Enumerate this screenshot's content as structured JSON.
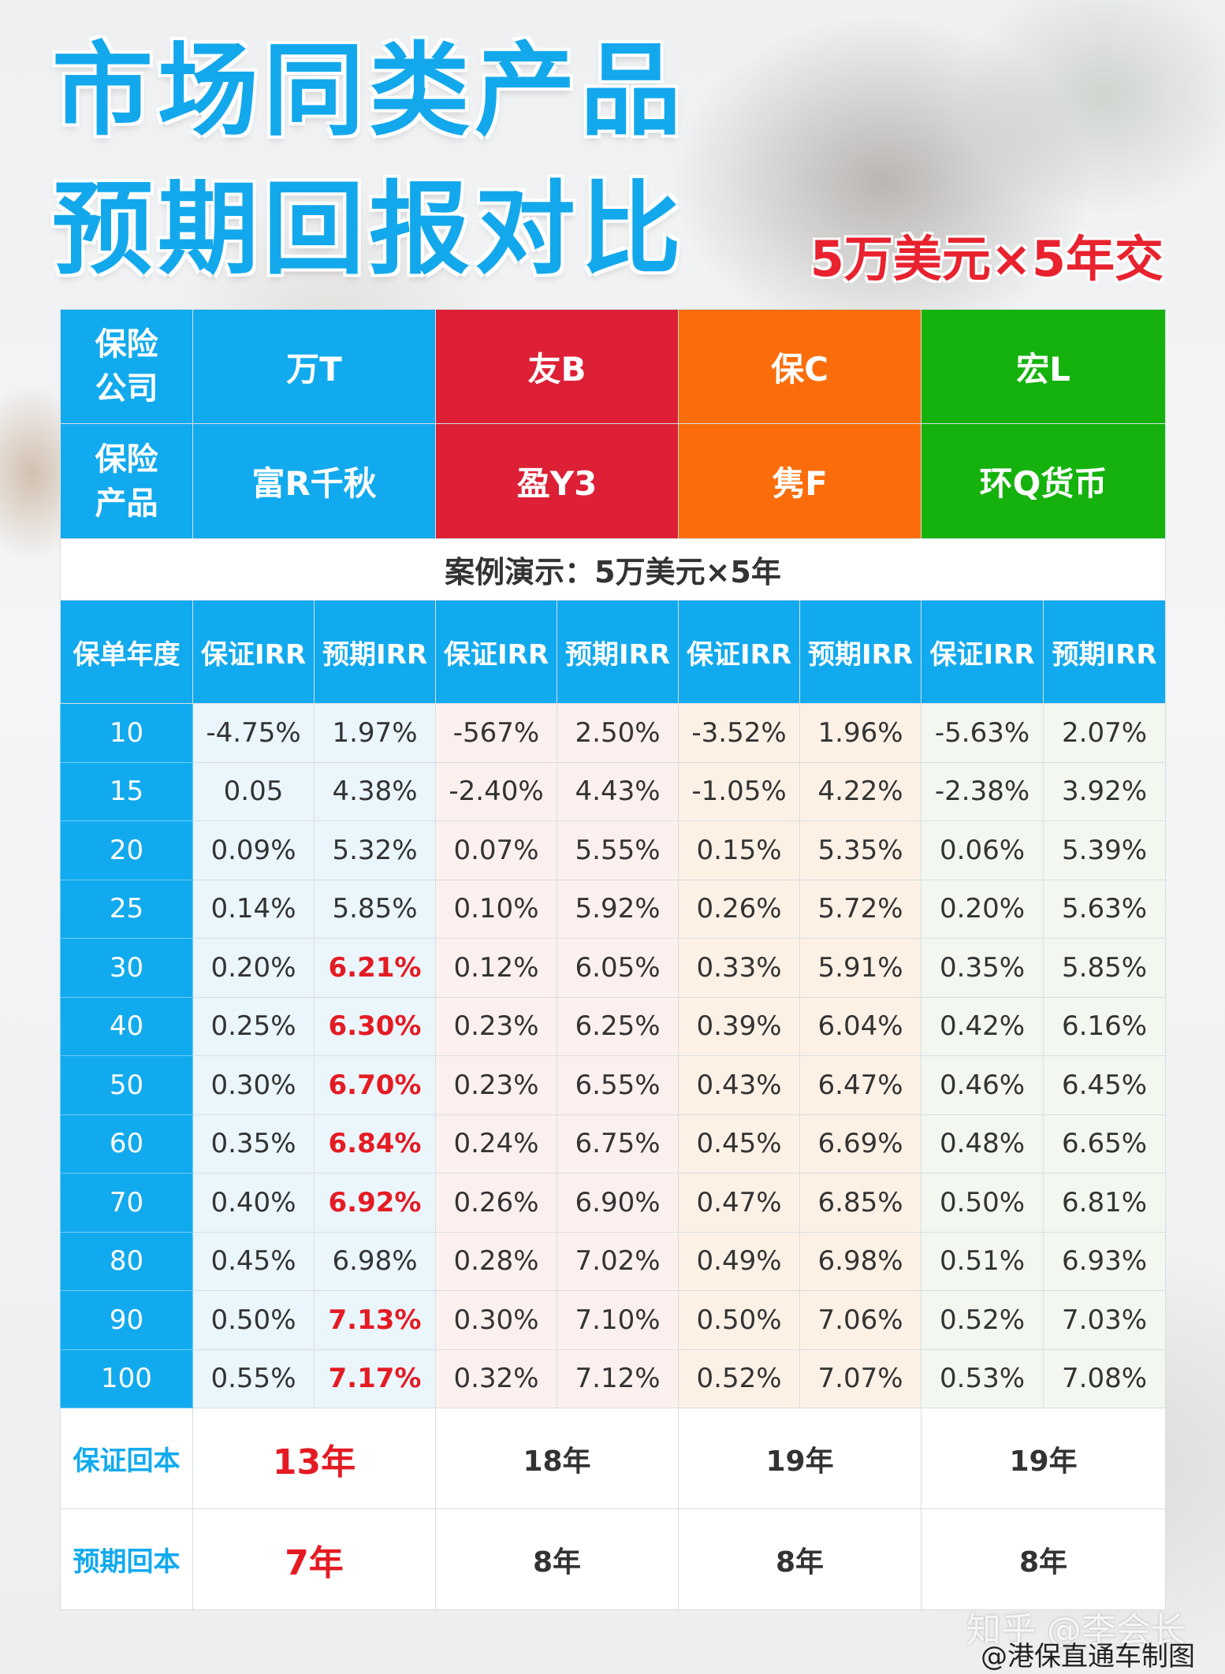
{
  "title": {
    "line1": "市场同类产品",
    "line2": "预期回报对比"
  },
  "subtitle": "5万美元×5年交",
  "header": {
    "company_label_l1": "保险",
    "company_label_l2": "公司",
    "product_label_l1": "保险",
    "product_label_l2": "产品",
    "companies": [
      "万T",
      "友B",
      "保C",
      "宏L"
    ],
    "products": [
      "富R千秋",
      "盈Y3",
      "隽F",
      "环Q货币"
    ]
  },
  "case_text": "案例演示：5万美元×5年",
  "columns": {
    "year": "保单年度",
    "guaranteed": "保证IRR",
    "expected": "预期IRR"
  },
  "rows": [
    {
      "year": "10",
      "cells": [
        "-4.75%",
        "1.97%",
        "-567%",
        "2.50%",
        "-3.52%",
        "1.96%",
        "-5.63%",
        "2.07%"
      ]
    },
    {
      "year": "15",
      "cells": [
        "0.05",
        "4.38%",
        "-2.40%",
        "4.43%",
        "-1.05%",
        "4.22%",
        "-2.38%",
        "3.92%"
      ]
    },
    {
      "year": "20",
      "cells": [
        "0.09%",
        "5.32%",
        "0.07%",
        "5.55%",
        "0.15%",
        "5.35%",
        "0.06%",
        "5.39%"
      ]
    },
    {
      "year": "25",
      "cells": [
        "0.14%",
        "5.85%",
        "0.10%",
        "5.92%",
        "0.26%",
        "5.72%",
        "0.20%",
        "5.63%"
      ]
    },
    {
      "year": "30",
      "cells": [
        "0.20%",
        "6.21%",
        "0.12%",
        "6.05%",
        "0.33%",
        "5.91%",
        "0.35%",
        "5.85%"
      ]
    },
    {
      "year": "40",
      "cells": [
        "0.25%",
        "6.30%",
        "0.23%",
        "6.25%",
        "0.39%",
        "6.04%",
        "0.42%",
        "6.16%"
      ]
    },
    {
      "year": "50",
      "cells": [
        "0.30%",
        "6.70%",
        "0.23%",
        "6.55%",
        "0.43%",
        "6.47%",
        "0.46%",
        "6.45%"
      ]
    },
    {
      "year": "60",
      "cells": [
        "0.35%",
        "6.84%",
        "0.24%",
        "6.75%",
        "0.45%",
        "6.69%",
        "0.48%",
        "6.65%"
      ]
    },
    {
      "year": "70",
      "cells": [
        "0.40%",
        "6.92%",
        "0.26%",
        "6.90%",
        "0.47%",
        "6.85%",
        "0.50%",
        "6.81%"
      ]
    },
    {
      "year": "80",
      "cells": [
        "0.45%",
        "6.98%",
        "0.28%",
        "7.02%",
        "0.49%",
        "6.98%",
        "0.51%",
        "6.93%"
      ]
    },
    {
      "year": "90",
      "cells": [
        "0.50%",
        "7.13%",
        "0.30%",
        "7.10%",
        "0.50%",
        "7.06%",
        "0.52%",
        "7.03%"
      ]
    },
    {
      "year": "100",
      "cells": [
        "0.55%",
        "7.17%",
        "0.32%",
        "7.12%",
        "0.52%",
        "7.07%",
        "0.53%",
        "7.08%"
      ]
    }
  ],
  "highlighted_years": [
    "30",
    "40",
    "50",
    "60",
    "70",
    "90",
    "100"
  ],
  "summary": {
    "guaranteed_breakeven": {
      "label": "保证回本",
      "values": [
        "13年",
        "18年",
        "19年",
        "19年"
      ]
    },
    "expected_breakeven": {
      "label": "预期回本",
      "values": [
        "7年",
        "8年",
        "8年",
        "8年"
      ]
    }
  },
  "watermark": "知乎 @李会长",
  "credit": "@港保直通车制图",
  "colors": {
    "blue": "#12aaee",
    "red": "#dd2036",
    "orange": "#fa6d0a",
    "green": "#15b20e",
    "highlight": "#e41b23"
  }
}
